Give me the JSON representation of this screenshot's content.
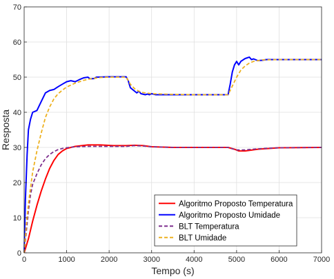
{
  "chart_data": {
    "type": "line",
    "title": "",
    "xlabel": "Tempo (s)",
    "ylabel": "Resposta",
    "xlim": [
      0,
      7000
    ],
    "ylim": [
      0,
      70
    ],
    "x_ticks": [
      0,
      1000,
      2000,
      3000,
      4000,
      5000,
      6000,
      7000
    ],
    "y_ticks": [
      0,
      10,
      20,
      30,
      40,
      50,
      60,
      70
    ],
    "x_tick_labels": [
      "0",
      "1000",
      "2000",
      "3000",
      "4000",
      "5000",
      "6000",
      "7000"
    ],
    "y_tick_labels": [
      "0",
      "10",
      "20",
      "30",
      "40",
      "50",
      "60",
      "70"
    ],
    "grid": true,
    "legend_position": "bottom-right",
    "series": [
      {
        "name": "Algoritmo Proposto Temperatura",
        "color": "#ff0000",
        "style": "solid",
        "points": [
          [
            0,
            0
          ],
          [
            100,
            4
          ],
          [
            200,
            9
          ],
          [
            300,
            13.5
          ],
          [
            400,
            17.5
          ],
          [
            500,
            21
          ],
          [
            600,
            24
          ],
          [
            700,
            26.3
          ],
          [
            800,
            28
          ],
          [
            900,
            29
          ],
          [
            1000,
            29.7
          ],
          [
            1200,
            30.3
          ],
          [
            1500,
            30.7
          ],
          [
            1800,
            30.7
          ],
          [
            2100,
            30.5
          ],
          [
            2400,
            30.5
          ],
          [
            2600,
            30.6
          ],
          [
            2800,
            30.5
          ],
          [
            3000,
            30.2
          ],
          [
            3500,
            30
          ],
          [
            4000,
            30
          ],
          [
            4500,
            30
          ],
          [
            4800,
            30
          ],
          [
            4950,
            29.5
          ],
          [
            5050,
            29
          ],
          [
            5200,
            29
          ],
          [
            5500,
            29.5
          ],
          [
            6000,
            29.9
          ],
          [
            7000,
            30
          ]
        ]
      },
      {
        "name": "Algoritmo Proposto Umidade",
        "color": "#0000ff",
        "style": "solid",
        "points": [
          [
            0,
            0
          ],
          [
            30,
            15
          ],
          [
            70,
            28
          ],
          [
            100,
            35
          ],
          [
            150,
            38
          ],
          [
            200,
            40
          ],
          [
            300,
            40.5
          ],
          [
            400,
            43
          ],
          [
            500,
            45.5
          ],
          [
            600,
            46.2
          ],
          [
            700,
            46.5
          ],
          [
            800,
            47.3
          ],
          [
            900,
            48
          ],
          [
            1000,
            48.7
          ],
          [
            1100,
            49
          ],
          [
            1200,
            48.7
          ],
          [
            1300,
            49.3
          ],
          [
            1400,
            49.8
          ],
          [
            1500,
            50
          ],
          [
            1550,
            49.5
          ],
          [
            1650,
            49.6
          ],
          [
            1700,
            50
          ],
          [
            2000,
            50.1
          ],
          [
            2400,
            50.1
          ],
          [
            2450,
            49
          ],
          [
            2500,
            47
          ],
          [
            2600,
            46
          ],
          [
            2650,
            45.5
          ],
          [
            2700,
            46
          ],
          [
            2750,
            45.3
          ],
          [
            2850,
            45
          ],
          [
            2900,
            45.2
          ],
          [
            2950,
            45
          ],
          [
            3000,
            45.3
          ],
          [
            3100,
            45
          ],
          [
            4000,
            45
          ],
          [
            4800,
            45
          ],
          [
            4850,
            48
          ],
          [
            4900,
            51.5
          ],
          [
            4950,
            53.5
          ],
          [
            5000,
            54.5
          ],
          [
            5050,
            53.5
          ],
          [
            5100,
            54.5
          ],
          [
            5200,
            55.3
          ],
          [
            5300,
            55.7
          ],
          [
            5350,
            55
          ],
          [
            5400,
            55.2
          ],
          [
            5500,
            54.7
          ],
          [
            5600,
            54.8
          ],
          [
            5700,
            55
          ],
          [
            7000,
            55
          ]
        ]
      },
      {
        "name": "BLT Temperatura",
        "color": "#7e2f8e",
        "style": "dashed",
        "points": [
          [
            0,
            0
          ],
          [
            50,
            6
          ],
          [
            100,
            12
          ],
          [
            150,
            16.5
          ],
          [
            200,
            19.5
          ],
          [
            300,
            22.5
          ],
          [
            400,
            25
          ],
          [
            500,
            26.8
          ],
          [
            600,
            28
          ],
          [
            700,
            28.8
          ],
          [
            800,
            29.4
          ],
          [
            900,
            29.7
          ],
          [
            1000,
            29.9
          ],
          [
            1200,
            30.2
          ],
          [
            1500,
            30.3
          ],
          [
            2000,
            30.3
          ],
          [
            2400,
            30.3
          ],
          [
            2600,
            30.5
          ],
          [
            2800,
            30.4
          ],
          [
            3000,
            30.2
          ],
          [
            3500,
            30
          ],
          [
            4000,
            30
          ],
          [
            4800,
            30
          ],
          [
            4900,
            29.6
          ],
          [
            5000,
            29.3
          ],
          [
            5200,
            29.3
          ],
          [
            5500,
            29.6
          ],
          [
            6000,
            29.9
          ],
          [
            7000,
            30
          ]
        ]
      },
      {
        "name": "BLT Umidade",
        "color": "#edb120",
        "style": "dashed",
        "points": [
          [
            0,
            0
          ],
          [
            50,
            8
          ],
          [
            100,
            14
          ],
          [
            200,
            23
          ],
          [
            300,
            29
          ],
          [
            400,
            34
          ],
          [
            500,
            38.5
          ],
          [
            600,
            41.5
          ],
          [
            700,
            43.8
          ],
          [
            800,
            45.3
          ],
          [
            900,
            46.3
          ],
          [
            1000,
            47.2
          ],
          [
            1200,
            48.3
          ],
          [
            1400,
            49.1
          ],
          [
            1600,
            49.6
          ],
          [
            1800,
            49.9
          ],
          [
            2000,
            50
          ],
          [
            2400,
            50
          ],
          [
            2500,
            48
          ],
          [
            2600,
            46.7
          ],
          [
            2700,
            46
          ],
          [
            2800,
            45.6
          ],
          [
            3000,
            45.3
          ],
          [
            3500,
            45.1
          ],
          [
            4000,
            45
          ],
          [
            4800,
            45
          ],
          [
            4900,
            47.5
          ],
          [
            5000,
            50
          ],
          [
            5100,
            52
          ],
          [
            5200,
            53.2
          ],
          [
            5300,
            54
          ],
          [
            5400,
            54.5
          ],
          [
            5600,
            54.9
          ],
          [
            6000,
            55
          ],
          [
            7000,
            55
          ]
        ]
      }
    ]
  }
}
